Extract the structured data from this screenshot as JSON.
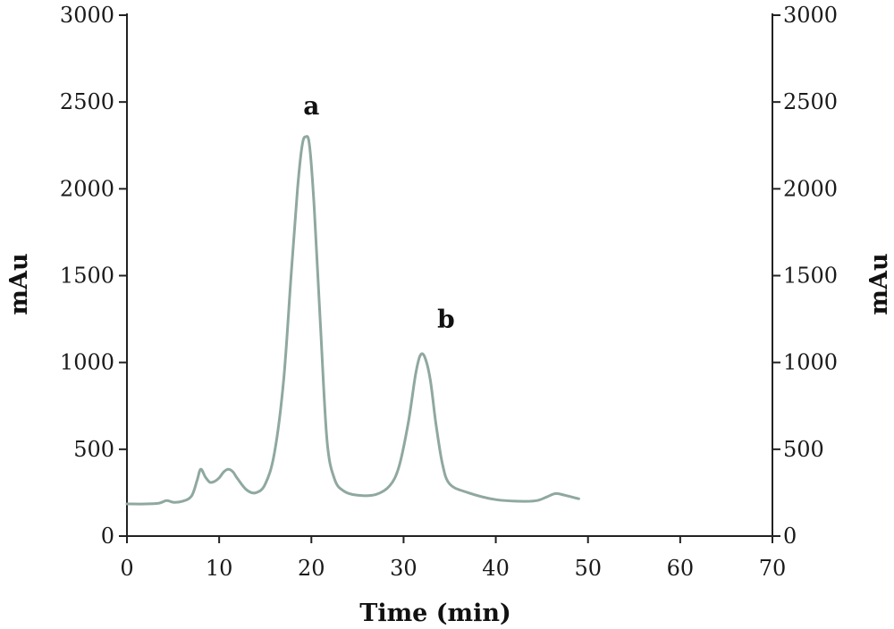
{
  "chart_data": {
    "type": "line",
    "title": "",
    "xlabel": "Time (min)",
    "ylabel_left": "mAu",
    "ylabel_right": "mAu",
    "xlim": [
      0,
      70
    ],
    "ylim": [
      0,
      3000
    ],
    "x_ticks": [
      0,
      10,
      20,
      30,
      40,
      50,
      60,
      70
    ],
    "y_ticks": [
      0,
      500,
      1000,
      1500,
      2000,
      2500,
      3000
    ],
    "grid": false,
    "colors": {
      "line": "#8fa8a0",
      "axis": "#222222"
    },
    "series": [
      {
        "x": [
          0,
          2,
          3.5,
          4.3,
          5,
          6,
          7,
          7.6,
          8,
          8.5,
          9,
          9.5,
          10,
          10.5,
          11,
          11.5,
          12,
          13,
          14,
          15,
          16,
          17,
          17.8,
          18.5,
          19,
          19.4,
          19.8,
          20.3,
          21,
          21.7,
          22.5,
          23.5,
          25,
          27,
          28.5,
          29.5,
          30.5,
          31.3,
          31.8,
          32.3,
          32.9,
          33.5,
          34.2,
          35,
          37,
          40,
          43,
          44.5,
          45.5,
          46.5,
          47.5,
          49
        ],
        "y": [
          185,
          185,
          190,
          205,
          195,
          200,
          230,
          320,
          385,
          340,
          310,
          315,
          335,
          370,
          385,
          370,
          330,
          265,
          250,
          300,
          480,
          900,
          1500,
          2000,
          2250,
          2300,
          2250,
          1900,
          1200,
          550,
          330,
          260,
          235,
          240,
          290,
          400,
          650,
          930,
          1040,
          1030,
          900,
          650,
          420,
          300,
          250,
          210,
          200,
          205,
          225,
          245,
          235,
          215
        ]
      }
    ],
    "annotations": [
      {
        "text": "a",
        "x": 20,
        "y": 2430
      },
      {
        "text": "b",
        "x": 34.6,
        "y": 1200
      }
    ]
  }
}
